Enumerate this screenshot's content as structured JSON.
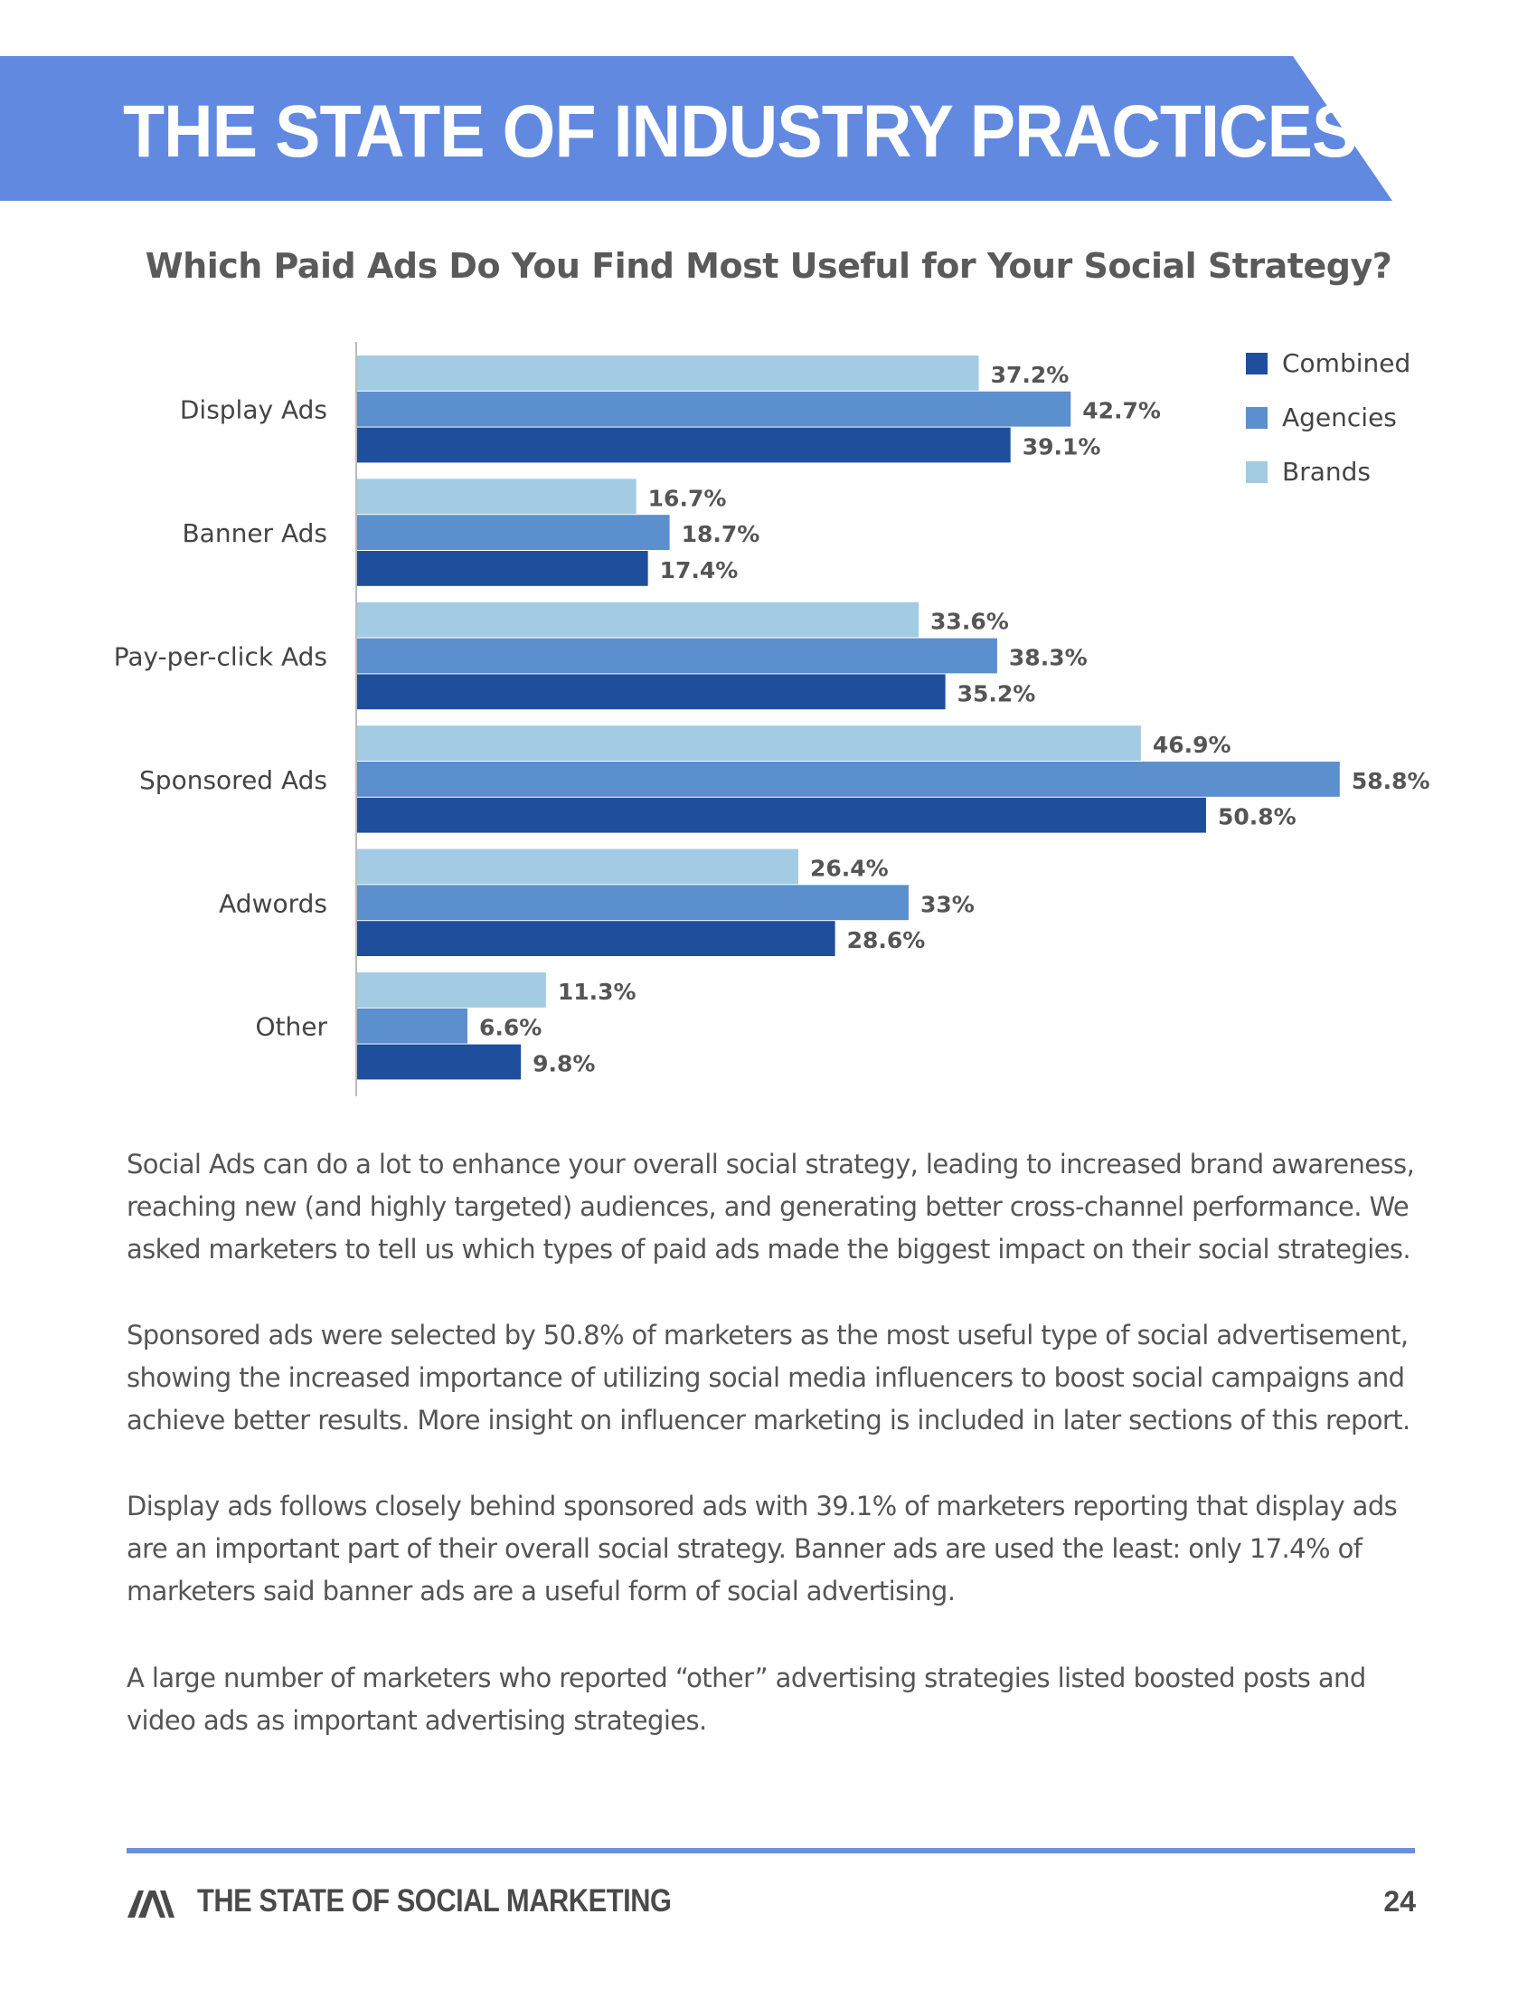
{
  "header": {
    "title": "THE STATE OF INDUSTRY PRACTICES"
  },
  "colors": {
    "banner": "#6189e0",
    "combined": "#1f4e9c",
    "agencies": "#5b8fcd",
    "brands": "#a3cbe3",
    "axis": "#bbbbbb",
    "label": "#444444",
    "value_label": "#555555",
    "footer_rule": "#6b8ee0"
  },
  "chart_data": {
    "type": "bar",
    "orientation": "horizontal",
    "title": "Which Paid Ads Do You Find Most Useful for Your Social Strategy?",
    "categories": [
      "Display Ads",
      "Banner Ads",
      "Pay-per-click Ads",
      "Sponsored Ads",
      "Adwords",
      "Other"
    ],
    "series": [
      {
        "name": "Brands",
        "values": [
          37.2,
          16.7,
          33.6,
          46.9,
          26.4,
          11.3
        ],
        "labels": [
          "37.2%",
          "16.7%",
          "33.6%",
          "46.9%",
          "26.4%",
          "11.3%"
        ]
      },
      {
        "name": "Agencies",
        "values": [
          42.7,
          18.7,
          38.3,
          58.8,
          33.0,
          6.6
        ],
        "labels": [
          "42.7%",
          "18.7%",
          "38.3%",
          "58.8%",
          "33%",
          "6.6%"
        ]
      },
      {
        "name": "Combined",
        "values": [
          39.1,
          17.4,
          35.2,
          50.8,
          28.6,
          9.8
        ],
        "labels": [
          "39.1%",
          "17.4%",
          "35.2%",
          "50.8%",
          "28.6%",
          "9.8%"
        ]
      }
    ],
    "legend": [
      "Combined",
      "Agencies",
      "Brands"
    ],
    "legend_position": "top-right",
    "xlim": [
      0,
      60
    ],
    "xlabel": "",
    "ylabel": "",
    "grid": false
  },
  "body": {
    "paragraphs": [
      [
        "Social Ads can do a lot to enhance your overall social strategy, leading to increased brand awareness,",
        "reaching new (and highly targeted) audiences, and generating better cross-channel performance. We",
        "asked marketers to tell us which types of paid ads made the biggest impact on their social strategies."
      ],
      [
        "Sponsored ads were selected by 50.8% of marketers as the most useful type of social advertisement,",
        "showing the increased importance of utilizing social media influencers to boost social campaigns and",
        "achieve better results. More insight on influencer marketing is included in later sections of this report."
      ],
      [
        "Display ads follows closely behind sponsored ads with 39.1% of marketers reporting that display ads",
        "are an important part of their overall social strategy. Banner ads are used the least: only 17.4% of",
        "marketers said banner ads are a useful form of social advertising."
      ],
      [
        "A large number of marketers who reported “other” advertising strategies listed boosted posts and",
        "video ads as important advertising strategies."
      ]
    ]
  },
  "footer": {
    "title": "THE STATE OF SOCIAL MARKETING",
    "page_number": "24",
    "logo_icon": "brand-logo-icon"
  }
}
